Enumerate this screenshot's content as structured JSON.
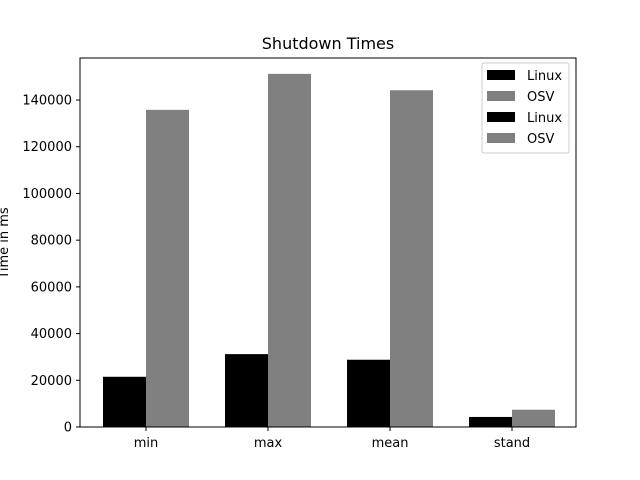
{
  "chart_data": {
    "type": "bar",
    "title": "Shutdown Times",
    "xlabel": "",
    "ylabel": "Time in ms",
    "categories": [
      "min",
      "max",
      "mean",
      "stand"
    ],
    "series": [
      {
        "name": "Linux",
        "values": [
          21500,
          31200,
          28800,
          4300
        ],
        "color": "#000000"
      },
      {
        "name": "OSV",
        "values": [
          135800,
          151200,
          144200,
          7400
        ],
        "color": "#808080"
      }
    ],
    "ylim": [
      0,
      158000
    ],
    "yticks": [
      0,
      20000,
      40000,
      60000,
      80000,
      100000,
      120000,
      140000
    ],
    "ytick_labels": [
      "0",
      "20000",
      "40000",
      "60000",
      "80000",
      "100000",
      "120000",
      "140000"
    ],
    "grid": false,
    "legend": {
      "placement": "upper right",
      "entries": [
        {
          "label": "Linux",
          "color": "#000000"
        },
        {
          "label": "OSV",
          "color": "#808080"
        },
        {
          "label": "Linux",
          "color": "#000000"
        },
        {
          "label": "OSV",
          "color": "#808080"
        }
      ]
    }
  }
}
